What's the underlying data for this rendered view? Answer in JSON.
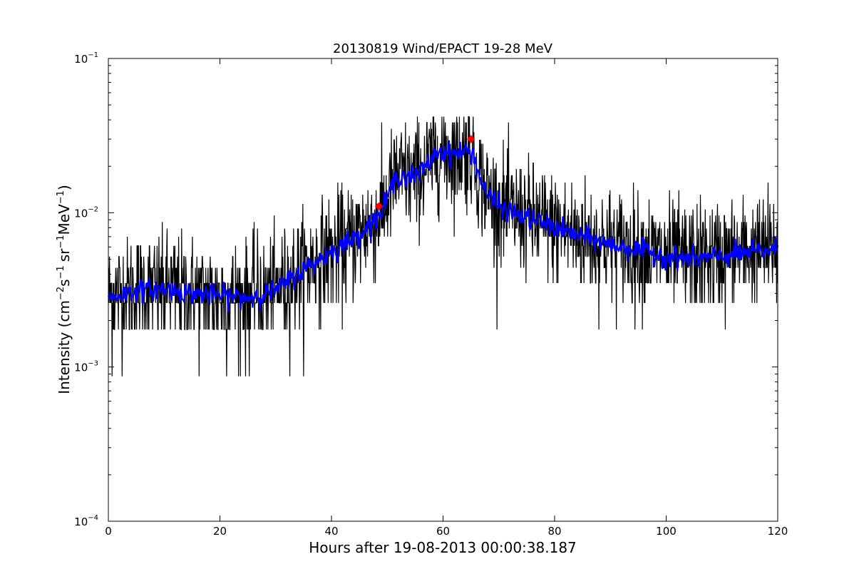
{
  "chart_data": {
    "type": "line",
    "title": "20130819 Wind/EPACT 19-28 MeV",
    "xlabel": "Hours after 19-08-2013 00:00:38.187",
    "ylabel": {
      "prefix": "Intensity (cm",
      "cm_exp": "−2",
      "s_unit": "s",
      "s_exp": "−1",
      "sr_unit": "sr",
      "sr_exp": "−1",
      "mev_unit": "MeV",
      "mev_exp": "−1",
      "suffix": ")"
    },
    "xlim": [
      0,
      120
    ],
    "ylim": [
      0.0001,
      0.1
    ],
    "yscale": "log",
    "grid": false,
    "x_ticks": [
      {
        "value": 0,
        "label": "0"
      },
      {
        "value": 20,
        "label": "20"
      },
      {
        "value": 40,
        "label": "40"
      },
      {
        "value": 60,
        "label": "60"
      },
      {
        "value": 80,
        "label": "80"
      },
      {
        "value": 100,
        "label": "100"
      },
      {
        "value": 120,
        "label": "120"
      }
    ],
    "y_ticks": [
      {
        "value": 0.0001,
        "base": "10",
        "exp": "−4"
      },
      {
        "value": 0.001,
        "base": "10",
        "exp": "−3"
      },
      {
        "value": 0.01,
        "base": "10",
        "exp": "−2"
      },
      {
        "value": 0.1,
        "base": "10",
        "exp": "−1"
      }
    ],
    "series": [
      {
        "style": "raw",
        "color": "#000000",
        "discrete_levels": [
          0.00087,
          0.00175,
          0.0026,
          0.0035,
          0.0044,
          0.0052,
          0.0061,
          0.007,
          0.0079,
          0.0087,
          0.0096,
          0.0105,
          0.0114,
          0.0122,
          0.0131,
          0.014,
          0.0157,
          0.0175,
          0.0192,
          0.021,
          0.0227,
          0.0245,
          0.0262,
          0.028,
          0.0297,
          0.0315,
          0.0332,
          0.035,
          0.0385,
          0.042
        ],
        "trend": [
          {
            "x": 0,
            "y": 0.0028
          },
          {
            "x": 5,
            "y": 0.0031
          },
          {
            "x": 10,
            "y": 0.0032
          },
          {
            "x": 15,
            "y": 0.003
          },
          {
            "x": 20,
            "y": 0.0029
          },
          {
            "x": 25,
            "y": 0.0028
          },
          {
            "x": 30,
            "y": 0.0031
          },
          {
            "x": 33,
            "y": 0.0038
          },
          {
            "x": 36,
            "y": 0.0045
          },
          {
            "x": 40,
            "y": 0.0056
          },
          {
            "x": 44,
            "y": 0.0068
          },
          {
            "x": 47,
            "y": 0.0085
          },
          {
            "x": 49,
            "y": 0.01
          },
          {
            "x": 50.5,
            "y": 0.014
          },
          {
            "x": 52,
            "y": 0.0175
          },
          {
            "x": 55,
            "y": 0.017
          },
          {
            "x": 57,
            "y": 0.02
          },
          {
            "x": 59,
            "y": 0.025
          },
          {
            "x": 62,
            "y": 0.024
          },
          {
            "x": 64,
            "y": 0.025
          },
          {
            "x": 65.5,
            "y": 0.024
          },
          {
            "x": 66.5,
            "y": 0.017
          },
          {
            "x": 68,
            "y": 0.013
          },
          {
            "x": 70,
            "y": 0.011
          },
          {
            "x": 74,
            "y": 0.0095
          },
          {
            "x": 78,
            "y": 0.0085
          },
          {
            "x": 82,
            "y": 0.0075
          },
          {
            "x": 86,
            "y": 0.0068
          },
          {
            "x": 90,
            "y": 0.0062
          },
          {
            "x": 95,
            "y": 0.0057
          },
          {
            "x": 100,
            "y": 0.0052
          },
          {
            "x": 105,
            "y": 0.005
          },
          {
            "x": 110,
            "y": 0.0052
          },
          {
            "x": 115,
            "y": 0.0055
          },
          {
            "x": 120,
            "y": 0.0058
          }
        ]
      },
      {
        "style": "smoothed",
        "color": "#0000ff",
        "trend": [
          {
            "x": 0,
            "y": 0.0028
          },
          {
            "x": 5,
            "y": 0.0031
          },
          {
            "x": 10,
            "y": 0.0032
          },
          {
            "x": 15,
            "y": 0.003
          },
          {
            "x": 20,
            "y": 0.0029
          },
          {
            "x": 25,
            "y": 0.0028
          },
          {
            "x": 30,
            "y": 0.0031
          },
          {
            "x": 33,
            "y": 0.0038
          },
          {
            "x": 36,
            "y": 0.0045
          },
          {
            "x": 40,
            "y": 0.0056
          },
          {
            "x": 44,
            "y": 0.0068
          },
          {
            "x": 47,
            "y": 0.0085
          },
          {
            "x": 49,
            "y": 0.01
          },
          {
            "x": 50.5,
            "y": 0.014
          },
          {
            "x": 52,
            "y": 0.0175
          },
          {
            "x": 55,
            "y": 0.017
          },
          {
            "x": 57,
            "y": 0.02
          },
          {
            "x": 59,
            "y": 0.025
          },
          {
            "x": 62,
            "y": 0.024
          },
          {
            "x": 64,
            "y": 0.025
          },
          {
            "x": 65.5,
            "y": 0.024
          },
          {
            "x": 66.5,
            "y": 0.017
          },
          {
            "x": 68,
            "y": 0.013
          },
          {
            "x": 70,
            "y": 0.011
          },
          {
            "x": 74,
            "y": 0.0095
          },
          {
            "x": 78,
            "y": 0.0085
          },
          {
            "x": 82,
            "y": 0.0075
          },
          {
            "x": 86,
            "y": 0.0068
          },
          {
            "x": 90,
            "y": 0.0062
          },
          {
            "x": 95,
            "y": 0.0057
          },
          {
            "x": 100,
            "y": 0.0052
          },
          {
            "x": 105,
            "y": 0.005
          },
          {
            "x": 110,
            "y": 0.0052
          },
          {
            "x": 115,
            "y": 0.0055
          },
          {
            "x": 120,
            "y": 0.0058
          }
        ]
      }
    ],
    "markers": [
      {
        "x": 48.5,
        "y": 0.011,
        "color": "#ff0000",
        "shape": "diamond"
      },
      {
        "x": 65,
        "y": 0.03,
        "color": "#ff0000",
        "shape": "diamond"
      }
    ]
  }
}
